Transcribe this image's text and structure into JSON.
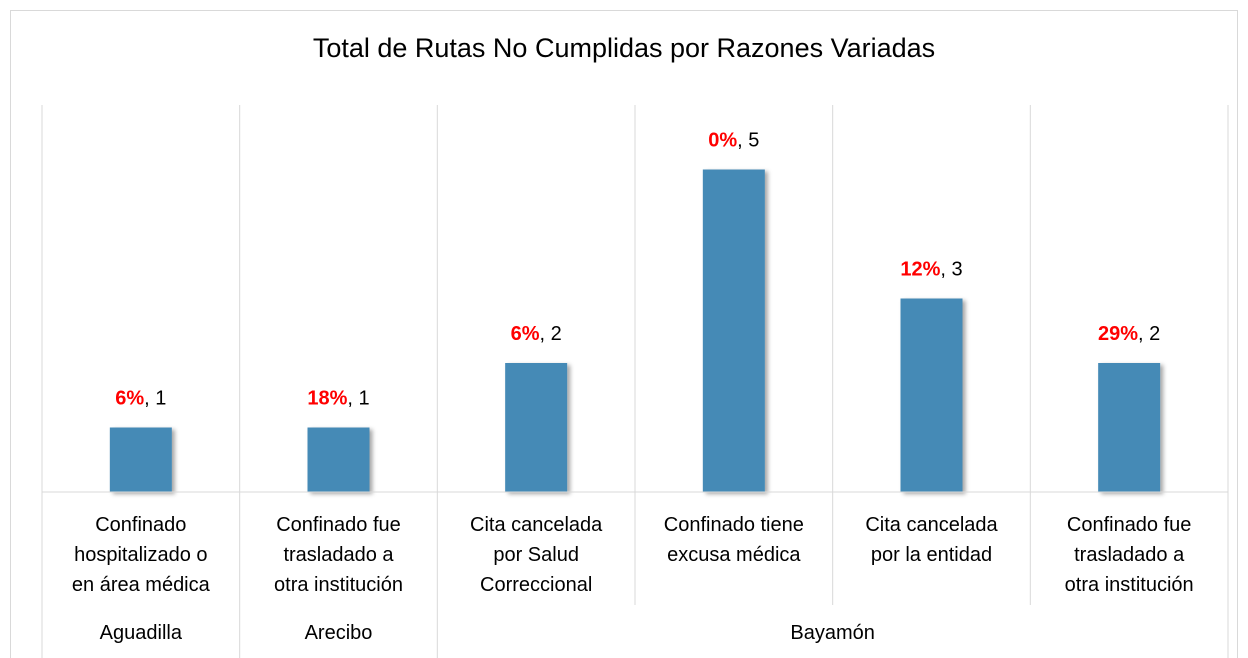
{
  "chart_data": {
    "type": "bar",
    "title": "Total de Rutas No Cumplidas por Razones Variadas",
    "color": "#448ab6",
    "percent_color": "#ff0000",
    "label_separator": ", ",
    "ylim": [
      0,
      6
    ],
    "groups": [
      {
        "name": "Aguadilla",
        "categories": [
          "Confinado hospitalizado o en área médica"
        ],
        "values": [
          1
        ],
        "percent_labels": [
          "6%"
        ]
      },
      {
        "name": "Arecibo",
        "categories": [
          "Confinado fue trasladado a otra institución"
        ],
        "values": [
          1
        ],
        "percent_labels": [
          "18%"
        ]
      },
      {
        "name": "Bayamón",
        "categories": [
          "Cita cancelada por Salud Correccional",
          "Confinado tiene excusa médica",
          "Cita cancelada por la entidad",
          "Confinado fue trasladado a otra institución"
        ],
        "values": [
          2,
          5,
          3,
          2
        ],
        "percent_labels": [
          "6%",
          "0%",
          "12%",
          "29%"
        ]
      }
    ]
  }
}
